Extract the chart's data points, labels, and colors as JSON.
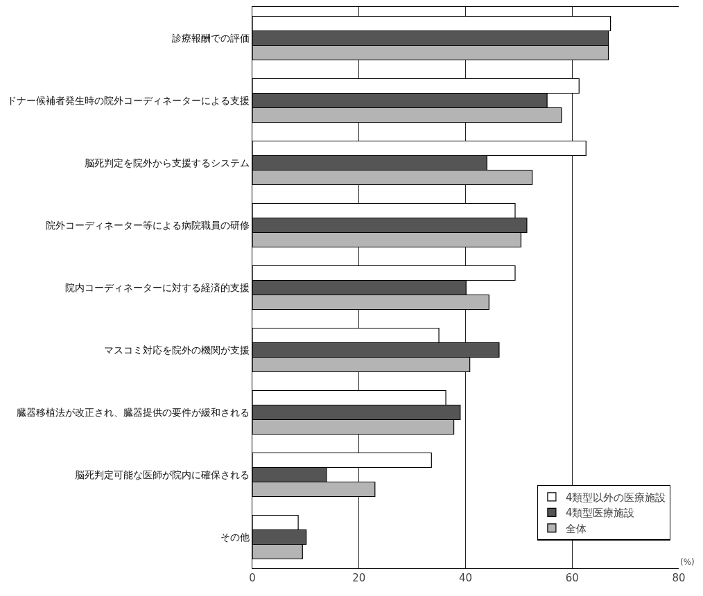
{
  "chart_data": {
    "type": "bar",
    "orientation": "horizontal",
    "xlabel": "(%)",
    "categories": [
      "診療報酬での評価",
      "ドナー候補者発生時の院外コーディネーターによる支援",
      "脳死判定を院外から支援するシステム",
      "院外コーディネーター等による病院職員の研修",
      "院内コーディネーターに対する経済的支援",
      "マスコミ対応を院外の機関が支援",
      "臓器移植法が改正され、臓器提供の要件が緩和される",
      "脳死判定可能な医師が院内に確保される",
      "その他"
    ],
    "series": [
      {
        "name": "4類型以外の医療施設",
        "color": "#ffffff",
        "values": [
          67.2,
          61.3,
          62.6,
          49.3,
          49.3,
          35.0,
          36.3,
          33.6,
          8.6
        ]
      },
      {
        "name": "4類型医療施設",
        "color": "#555555",
        "values": [
          66.8,
          55.3,
          44.0,
          51.5,
          40.1,
          46.3,
          39.0,
          13.9,
          10.1
        ]
      },
      {
        "name": "全体",
        "color": "#b4b4b4",
        "values": [
          66.8,
          58.0,
          52.5,
          50.4,
          44.4,
          40.8,
          37.8,
          23.0,
          9.4
        ]
      }
    ],
    "xlim": [
      0,
      80
    ],
    "xticks": [
      0,
      20,
      40,
      60,
      80
    ],
    "grid": "x",
    "legend": "bottom right"
  }
}
